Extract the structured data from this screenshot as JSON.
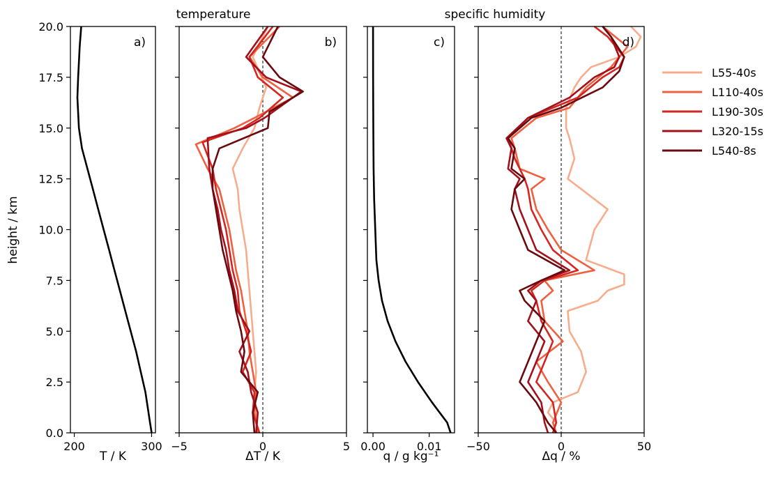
{
  "figure": {
    "y_axis_label": "height / km",
    "group_titles": [
      "temperature",
      "specific humidity"
    ]
  },
  "legend": {
    "placement": "right",
    "entries": [
      {
        "label": "L55-40s",
        "color": "#f7ac8c"
      },
      {
        "label": "L110-40s",
        "color": "#f0603f"
      },
      {
        "label": "L190-30s",
        "color": "#d52520"
      },
      {
        "label": "L320-15s",
        "color": "#a3101b"
      },
      {
        "label": "L540-8s",
        "color": "#6b0a0e"
      }
    ]
  },
  "chart_data": [
    {
      "type": "line",
      "panel_label": "a)",
      "xlabel": "T / K",
      "xlim": [
        195,
        305
      ],
      "ylim": [
        0,
        20
      ],
      "xticks": [
        "200",
        "300"
      ],
      "yticks": [
        "0.0",
        "2.5",
        "5.0",
        "7.5",
        "10.0",
        "12.5",
        "15.0",
        "17.5",
        "20.0"
      ],
      "series": [
        {
          "color": "#000000",
          "x": [
            300,
            298,
            292,
            286,
            280,
            273,
            266,
            259,
            252,
            245,
            238,
            231,
            224,
            217,
            210,
            206,
            204,
            205,
            207,
            209
          ],
          "y": [
            0,
            0.5,
            2,
            3,
            4,
            5,
            6,
            7,
            8,
            9,
            10,
            11,
            12,
            13,
            14,
            15,
            16.5,
            17.5,
            19,
            20
          ]
        }
      ]
    },
    {
      "type": "line",
      "panel_label": "b)",
      "xlabel": "ΔT / K",
      "xlim": [
        -5,
        5
      ],
      "ylim": [
        0,
        20
      ],
      "reference_line_x": 0,
      "xticks": [
        "-5",
        "0",
        "5"
      ],
      "series": [
        {
          "name": "L55-40s",
          "color": "#f7ac8c",
          "x": [
            -0.3,
            -0.4,
            -0.5,
            -0.4,
            -0.5,
            -0.6,
            -0.7,
            -0.8,
            -0.9,
            -1.0,
            -1.2,
            -1.4,
            -1.5,
            -1.8,
            -1.2,
            -0.5,
            -0.2,
            0.2,
            -0.6,
            0.3
          ],
          "y": [
            0,
            1,
            2,
            3,
            4,
            5,
            6,
            7,
            8,
            9,
            10,
            11,
            12,
            13,
            14,
            15,
            16,
            17,
            18.5,
            20
          ]
        },
        {
          "name": "L110-40s",
          "color": "#f0603f",
          "x": [
            -0.3,
            -0.5,
            -0.4,
            -0.6,
            -0.8,
            -0.9,
            -1.1,
            -1.3,
            -1.6,
            -1.8,
            -2.0,
            -2.3,
            -2.6,
            -3.3,
            -4.0,
            -1.7,
            -0.5,
            1.8,
            0.0,
            -0.8,
            1.0
          ],
          "y": [
            0,
            1,
            2,
            3,
            4,
            5,
            6,
            7,
            8,
            9,
            10,
            11,
            12,
            13,
            14.2,
            15,
            15.5,
            16.5,
            17.5,
            18.5,
            20
          ]
        },
        {
          "name": "L190-30s",
          "color": "#d52520",
          "x": [
            -0.2,
            -0.6,
            -0.5,
            -1.2,
            -0.7,
            -1.0,
            -1.4,
            -1.5,
            -1.8,
            -2.0,
            -2.2,
            -2.5,
            -2.8,
            -3.0,
            -3.6,
            -1.2,
            -0.2,
            1.2,
            -0.3,
            -0.8,
            0.6
          ],
          "y": [
            0,
            1,
            2,
            3,
            4,
            5,
            6,
            7,
            8,
            9,
            10,
            11,
            12,
            13,
            14.3,
            15,
            15.5,
            16.5,
            17.5,
            18.5,
            20
          ]
        },
        {
          "name": "L320-15s",
          "color": "#a3101b",
          "x": [
            -0.4,
            -0.3,
            -0.7,
            -0.9,
            -1.4,
            -0.8,
            -1.5,
            -1.7,
            -2.0,
            -2.2,
            -2.5,
            -2.7,
            -3.0,
            -3.2,
            -3.3,
            -1.0,
            0.1,
            2.3,
            0.2,
            -1.0,
            0.3
          ],
          "y": [
            0,
            1,
            2,
            3,
            4,
            5,
            6,
            7,
            8,
            9,
            10,
            11,
            12,
            13,
            14.5,
            15,
            15.5,
            16.8,
            17.5,
            18.5,
            20
          ]
        },
        {
          "name": "L540-8s",
          "color": "#6b0a0e",
          "x": [
            -0.5,
            -0.6,
            -0.3,
            -1.3,
            -1.1,
            -1.3,
            -1.6,
            -1.8,
            -2.1,
            -2.4,
            -2.6,
            -2.8,
            -3.0,
            -3.0,
            -2.6,
            0.3,
            0.4,
            2.4,
            1.0,
            0.0,
            0.9
          ],
          "y": [
            0,
            1,
            2,
            3,
            4,
            5,
            6,
            7,
            8,
            9,
            10,
            11,
            12,
            13,
            14,
            15,
            15.8,
            16.8,
            17.5,
            18.5,
            20
          ]
        }
      ]
    },
    {
      "type": "line",
      "panel_label": "c)",
      "xlabel": "q / g kg⁻¹",
      "xlim": [
        -0.001,
        0.0145
      ],
      "ylim": [
        0,
        20
      ],
      "xticks": [
        "0.00",
        "0.01"
      ],
      "series": [
        {
          "color": "#000000",
          "x": [
            0.0138,
            0.0132,
            0.0105,
            0.008,
            0.0058,
            0.004,
            0.0026,
            0.0016,
            0.001,
            0.0006,
            0.0004,
            0.0002,
            0.0001,
            5e-05,
            2e-05,
            1e-05
          ],
          "y": [
            0,
            0.5,
            1.5,
            2.5,
            3.5,
            4.5,
            5.5,
            6.5,
            7.5,
            8.5,
            10,
            11.5,
            13,
            15,
            17.5,
            20
          ]
        }
      ]
    },
    {
      "type": "line",
      "panel_label": "d)",
      "xlabel": "Δq / %",
      "xlim": [
        -50,
        50
      ],
      "ylim": [
        0,
        20
      ],
      "reference_line_x": 0,
      "xticks": [
        "-50",
        "0",
        "50"
      ],
      "series": [
        {
          "name": "L55-40s",
          "color": "#f7ac8c",
          "x": [
            -5,
            -3,
            -8,
            -5,
            10,
            15,
            12,
            5,
            4,
            22,
            28,
            38,
            38,
            15,
            20,
            28,
            12,
            4,
            8,
            5,
            3,
            3,
            8,
            12,
            18,
            35,
            45,
            48,
            42
          ],
          "y": [
            0,
            0.5,
            1,
            1.5,
            2,
            3,
            4,
            5,
            6,
            6.5,
            7,
            7.3,
            7.8,
            8.5,
            10,
            11,
            12,
            12.5,
            13.5,
            14.5,
            15,
            16,
            17,
            17.5,
            18,
            18.5,
            19,
            19.5,
            20
          ]
        },
        {
          "name": "L110-40s",
          "color": "#f0603f",
          "x": [
            -3,
            -5,
            0,
            -8,
            -15,
            1,
            -10,
            -12,
            -5,
            -10,
            20,
            0,
            -8,
            -15,
            -18,
            -10,
            -25,
            -28,
            -30,
            -15,
            5,
            15,
            30,
            35,
            40,
            25
          ],
          "y": [
            0,
            0.5,
            1.5,
            2.5,
            3.5,
            4.5,
            5.5,
            6.5,
            7,
            7.5,
            8,
            9,
            10,
            11,
            12,
            12.5,
            13,
            14,
            14.5,
            15.5,
            16,
            17,
            18,
            18.5,
            19,
            20
          ]
        },
        {
          "name": "L190-30s",
          "color": "#d52520",
          "x": [
            -5,
            -3,
            -5,
            -15,
            -10,
            -5,
            -12,
            -15,
            -18,
            -10,
            10,
            -5,
            -12,
            -18,
            -20,
            -22,
            -25,
            -28,
            -30,
            -32,
            -20,
            10,
            25,
            35,
            38,
            28,
            20
          ],
          "y": [
            0,
            0.5,
            1.5,
            2.5,
            3.5,
            4.5,
            5.5,
            6.5,
            7,
            7.5,
            8,
            9,
            10,
            11,
            12,
            12.5,
            13,
            13.5,
            14,
            14.5,
            15.5,
            16.5,
            17.5,
            18,
            18.5,
            19.5,
            20
          ]
        },
        {
          "name": "L320-15s",
          "color": "#a3101b",
          "x": [
            -8,
            -10,
            -12,
            -20,
            -15,
            -10,
            -20,
            -15,
            -20,
            -12,
            5,
            -15,
            -20,
            -25,
            -28,
            -25,
            -32,
            -30,
            -33,
            -20,
            5,
            20,
            32,
            35,
            30,
            25
          ],
          "y": [
            0,
            0.5,
            1.5,
            2.5,
            3.5,
            4.5,
            5.5,
            6.5,
            7,
            7.5,
            8,
            9,
            10,
            11,
            12,
            12.5,
            13,
            14,
            14.5,
            15.5,
            16.5,
            17.5,
            18,
            18.5,
            19.5,
            20
          ]
        },
        {
          "name": "L540-8s",
          "color": "#6b0a0e",
          "x": [
            -3,
            -8,
            -15,
            -25,
            -20,
            -15,
            -10,
            -22,
            -25,
            -12,
            2,
            -20,
            -25,
            -30,
            -28,
            -22,
            -30,
            -28,
            -32,
            -18,
            0,
            25,
            35,
            38,
            30,
            25
          ],
          "y": [
            0,
            0.5,
            1.5,
            2.5,
            3.5,
            4.5,
            5.5,
            6.5,
            7,
            7.5,
            8,
            9,
            10,
            11,
            12,
            12.5,
            13,
            14,
            14.5,
            15.5,
            16,
            17,
            17.8,
            18.5,
            19.5,
            20
          ]
        }
      ]
    }
  ]
}
